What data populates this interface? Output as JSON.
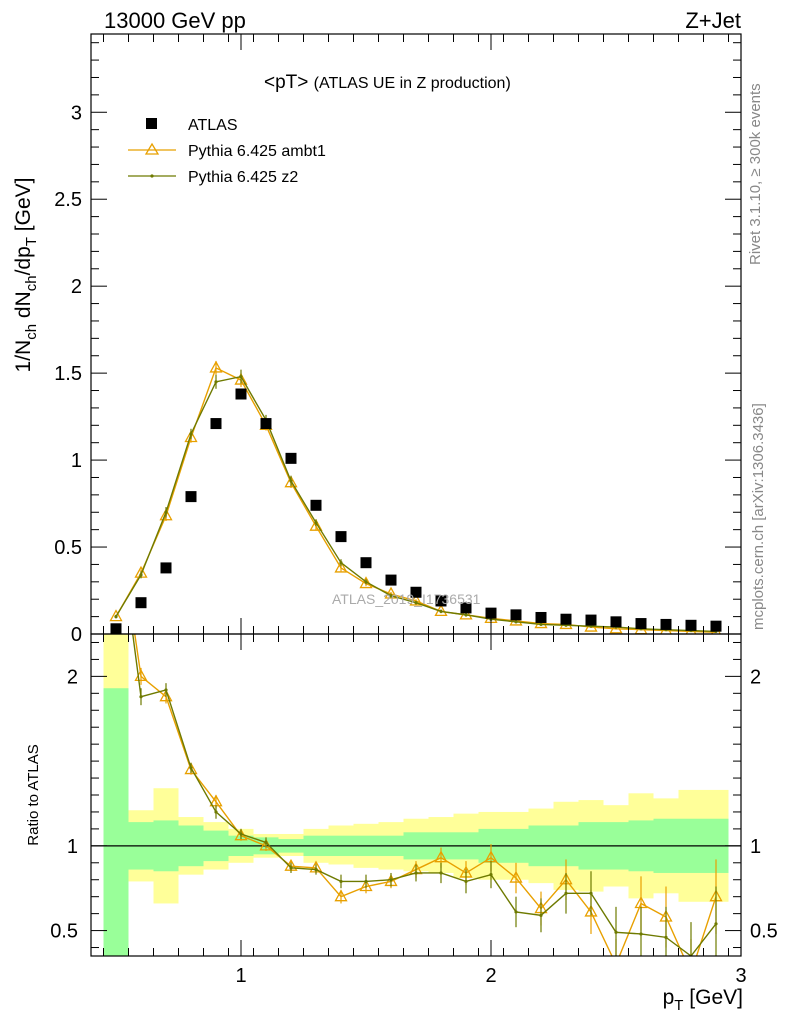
{
  "header": {
    "left": "13000 GeV pp",
    "right": "Z+Jet"
  },
  "side": {
    "rivet": "Rivet 3.1.10, ≥ 300k events",
    "mcplots": "mcplots.cern.ch [arXiv:1306.3436]"
  },
  "watermark": "ATLAS_2019_I1736531",
  "colors": {
    "data": "#000000",
    "ambt1": "#e8a000",
    "z2": "#6e7a00",
    "band_inner": "#99ff99",
    "band_outer": "#ffff99"
  },
  "chart_data": [
    {
      "type": "scatter",
      "title": "<pT> (ATLAS UE in Z production)",
      "title_main": "<pT>",
      "title_sub": "(ATLAS UE in Z production)",
      "xlabel": "p_T [GeV]",
      "xlabel_main": "p",
      "xlabel_sub": "T",
      "xlabel_unit": "[GeV]",
      "ylabel": "1/N_ch dN_ch/dp_T [GeV]",
      "ylabel_parts": [
        "1/N",
        "ch",
        " dN",
        "ch",
        "/dp",
        "T",
        " [GeV]"
      ],
      "xlim": [
        0.4,
        3.0
      ],
      "ylim": [
        0,
        3.45
      ],
      "yticks": [
        0,
        0.5,
        1,
        1.5,
        2,
        2.5,
        3
      ],
      "ytick_labels": [
        "0",
        "0.5",
        "1",
        "1.5",
        "2",
        "2.5",
        "3"
      ],
      "legend": [
        "ATLAS",
        "Pythia 6.425 ambt1",
        "Pythia 6.425 z2"
      ],
      "legend_position": "top-left",
      "x": [
        0.5,
        0.6,
        0.7,
        0.8,
        0.9,
        1.0,
        1.1,
        1.2,
        1.3,
        1.4,
        1.5,
        1.6,
        1.7,
        1.8,
        1.9,
        2.0,
        2.1,
        2.2,
        2.3,
        2.4,
        2.5,
        2.6,
        2.7,
        2.8,
        2.9
      ],
      "series": [
        {
          "name": "ATLAS",
          "values": [
            0.03,
            0.18,
            0.38,
            0.79,
            1.21,
            1.38,
            1.21,
            1.01,
            0.74,
            0.56,
            0.41,
            0.31,
            0.24,
            0.19,
            0.15,
            0.12,
            0.11,
            0.095,
            0.085,
            0.08,
            0.07,
            0.06,
            0.055,
            0.05,
            0.045
          ]
        },
        {
          "name": "Pythia 6.425 ambt1",
          "values": [
            0.1,
            0.35,
            0.68,
            1.13,
            1.53,
            1.46,
            1.2,
            0.87,
            0.62,
            0.38,
            0.29,
            0.23,
            0.19,
            0.13,
            0.11,
            0.09,
            0.075,
            0.06,
            0.055,
            0.04,
            0.03,
            0.025,
            0.02,
            0.015,
            0.01
          ],
          "errors": [
            0.01,
            0.02,
            0.03,
            0.03,
            0.04,
            0.04,
            0.03,
            0.03,
            0.02,
            0.02,
            0.015,
            0.012,
            0.01,
            0.01,
            0.01,
            0.008,
            0.008,
            0.006,
            0.006,
            0.005,
            0.005,
            0.005,
            0.004,
            0.004,
            0.004
          ]
        },
        {
          "name": "Pythia 6.425 z2",
          "values": [
            0.1,
            0.34,
            0.7,
            1.15,
            1.45,
            1.48,
            1.23,
            0.88,
            0.64,
            0.41,
            0.3,
            0.22,
            0.18,
            0.13,
            0.11,
            0.085,
            0.07,
            0.055,
            0.05,
            0.045,
            0.04,
            0.03,
            0.025,
            0.02,
            0.015
          ],
          "errors": [
            0.01,
            0.02,
            0.03,
            0.03,
            0.04,
            0.04,
            0.03,
            0.03,
            0.02,
            0.02,
            0.015,
            0.012,
            0.01,
            0.01,
            0.01,
            0.008,
            0.008,
            0.006,
            0.006,
            0.005,
            0.005,
            0.005,
            0.004,
            0.004,
            0.004
          ]
        }
      ]
    },
    {
      "type": "line",
      "ylabel": "Ratio to ATLAS",
      "xlim": [
        0.4,
        3.0
      ],
      "ylim": [
        0.35,
        2.25
      ],
      "xticks": [
        1,
        2,
        3
      ],
      "xtick_labels": [
        "1",
        "2",
        "3"
      ],
      "yticks": [
        0.5,
        1,
        2
      ],
      "ytick_labels": [
        "0.5",
        "1",
        "2"
      ],
      "x_edges": [
        0.45,
        0.55,
        0.65,
        0.75,
        0.85,
        0.95,
        1.05,
        1.15,
        1.25,
        1.35,
        1.45,
        1.55,
        1.65,
        1.75,
        1.85,
        1.95,
        2.05,
        2.15,
        2.25,
        2.35,
        2.45,
        2.55,
        2.65,
        2.75,
        2.85,
        2.95
      ],
      "band_outer_lo": [
        0.35,
        0.79,
        0.66,
        0.83,
        0.86,
        0.9,
        0.93,
        0.94,
        0.9,
        0.89,
        0.87,
        0.86,
        0.85,
        0.84,
        0.81,
        0.8,
        0.8,
        0.78,
        0.74,
        0.73,
        0.76,
        0.69,
        0.72,
        0.67,
        0.67
      ],
      "band_outer_hi": [
        2.25,
        1.21,
        1.34,
        1.17,
        1.14,
        1.1,
        1.07,
        1.07,
        1.1,
        1.12,
        1.13,
        1.14,
        1.16,
        1.17,
        1.19,
        1.2,
        1.2,
        1.22,
        1.26,
        1.27,
        1.24,
        1.31,
        1.28,
        1.33,
        1.33
      ],
      "band_inner_lo": [
        0.35,
        0.86,
        0.85,
        0.88,
        0.91,
        0.94,
        0.95,
        0.96,
        0.94,
        0.94,
        0.94,
        0.94,
        0.92,
        0.92,
        0.92,
        0.9,
        0.9,
        0.88,
        0.88,
        0.86,
        0.86,
        0.85,
        0.84,
        0.84,
        0.84
      ],
      "band_inner_hi": [
        1.93,
        1.14,
        1.15,
        1.12,
        1.09,
        1.06,
        1.05,
        1.04,
        1.06,
        1.06,
        1.06,
        1.06,
        1.08,
        1.08,
        1.08,
        1.1,
        1.1,
        1.12,
        1.12,
        1.14,
        1.14,
        1.15,
        1.16,
        1.16,
        1.16
      ],
      "x": [
        0.5,
        0.6,
        0.7,
        0.8,
        0.9,
        1.0,
        1.1,
        1.2,
        1.3,
        1.4,
        1.5,
        1.6,
        1.7,
        1.8,
        1.9,
        2.0,
        2.1,
        2.2,
        2.3,
        2.4,
        2.5,
        2.6,
        2.7,
        2.8,
        2.9
      ],
      "series": [
        {
          "name": "Pythia 6.425 ambt1",
          "values": [
            3.0,
            2.0,
            1.88,
            1.45,
            1.26,
            1.06,
            1.0,
            0.88,
            0.87,
            0.7,
            0.76,
            0.79,
            0.86,
            0.93,
            0.84,
            0.93,
            0.81,
            0.63,
            0.8,
            0.61,
            0.3,
            0.66,
            0.58,
            0.25,
            0.7
          ],
          "errors": [
            0.3,
            0.05,
            0.04,
            0.03,
            0.04,
            0.03,
            0.03,
            0.03,
            0.03,
            0.04,
            0.04,
            0.04,
            0.05,
            0.06,
            0.07,
            0.08,
            0.09,
            0.1,
            0.12,
            0.13,
            0.15,
            0.16,
            0.18,
            0.2,
            0.22
          ]
        },
        {
          "name": "Pythia 6.425 z2",
          "values": [
            3.0,
            1.88,
            1.92,
            1.46,
            1.2,
            1.07,
            1.02,
            0.87,
            0.86,
            0.79,
            0.79,
            0.8,
            0.84,
            0.84,
            0.79,
            0.83,
            0.61,
            0.59,
            0.72,
            0.72,
            0.49,
            0.48,
            0.46,
            0.35,
            0.54
          ],
          "errors": [
            0.3,
            0.05,
            0.04,
            0.03,
            0.04,
            0.03,
            0.03,
            0.03,
            0.03,
            0.04,
            0.04,
            0.04,
            0.05,
            0.06,
            0.07,
            0.08,
            0.09,
            0.1,
            0.12,
            0.13,
            0.15,
            0.16,
            0.18,
            0.2,
            0.22
          ]
        }
      ]
    }
  ]
}
